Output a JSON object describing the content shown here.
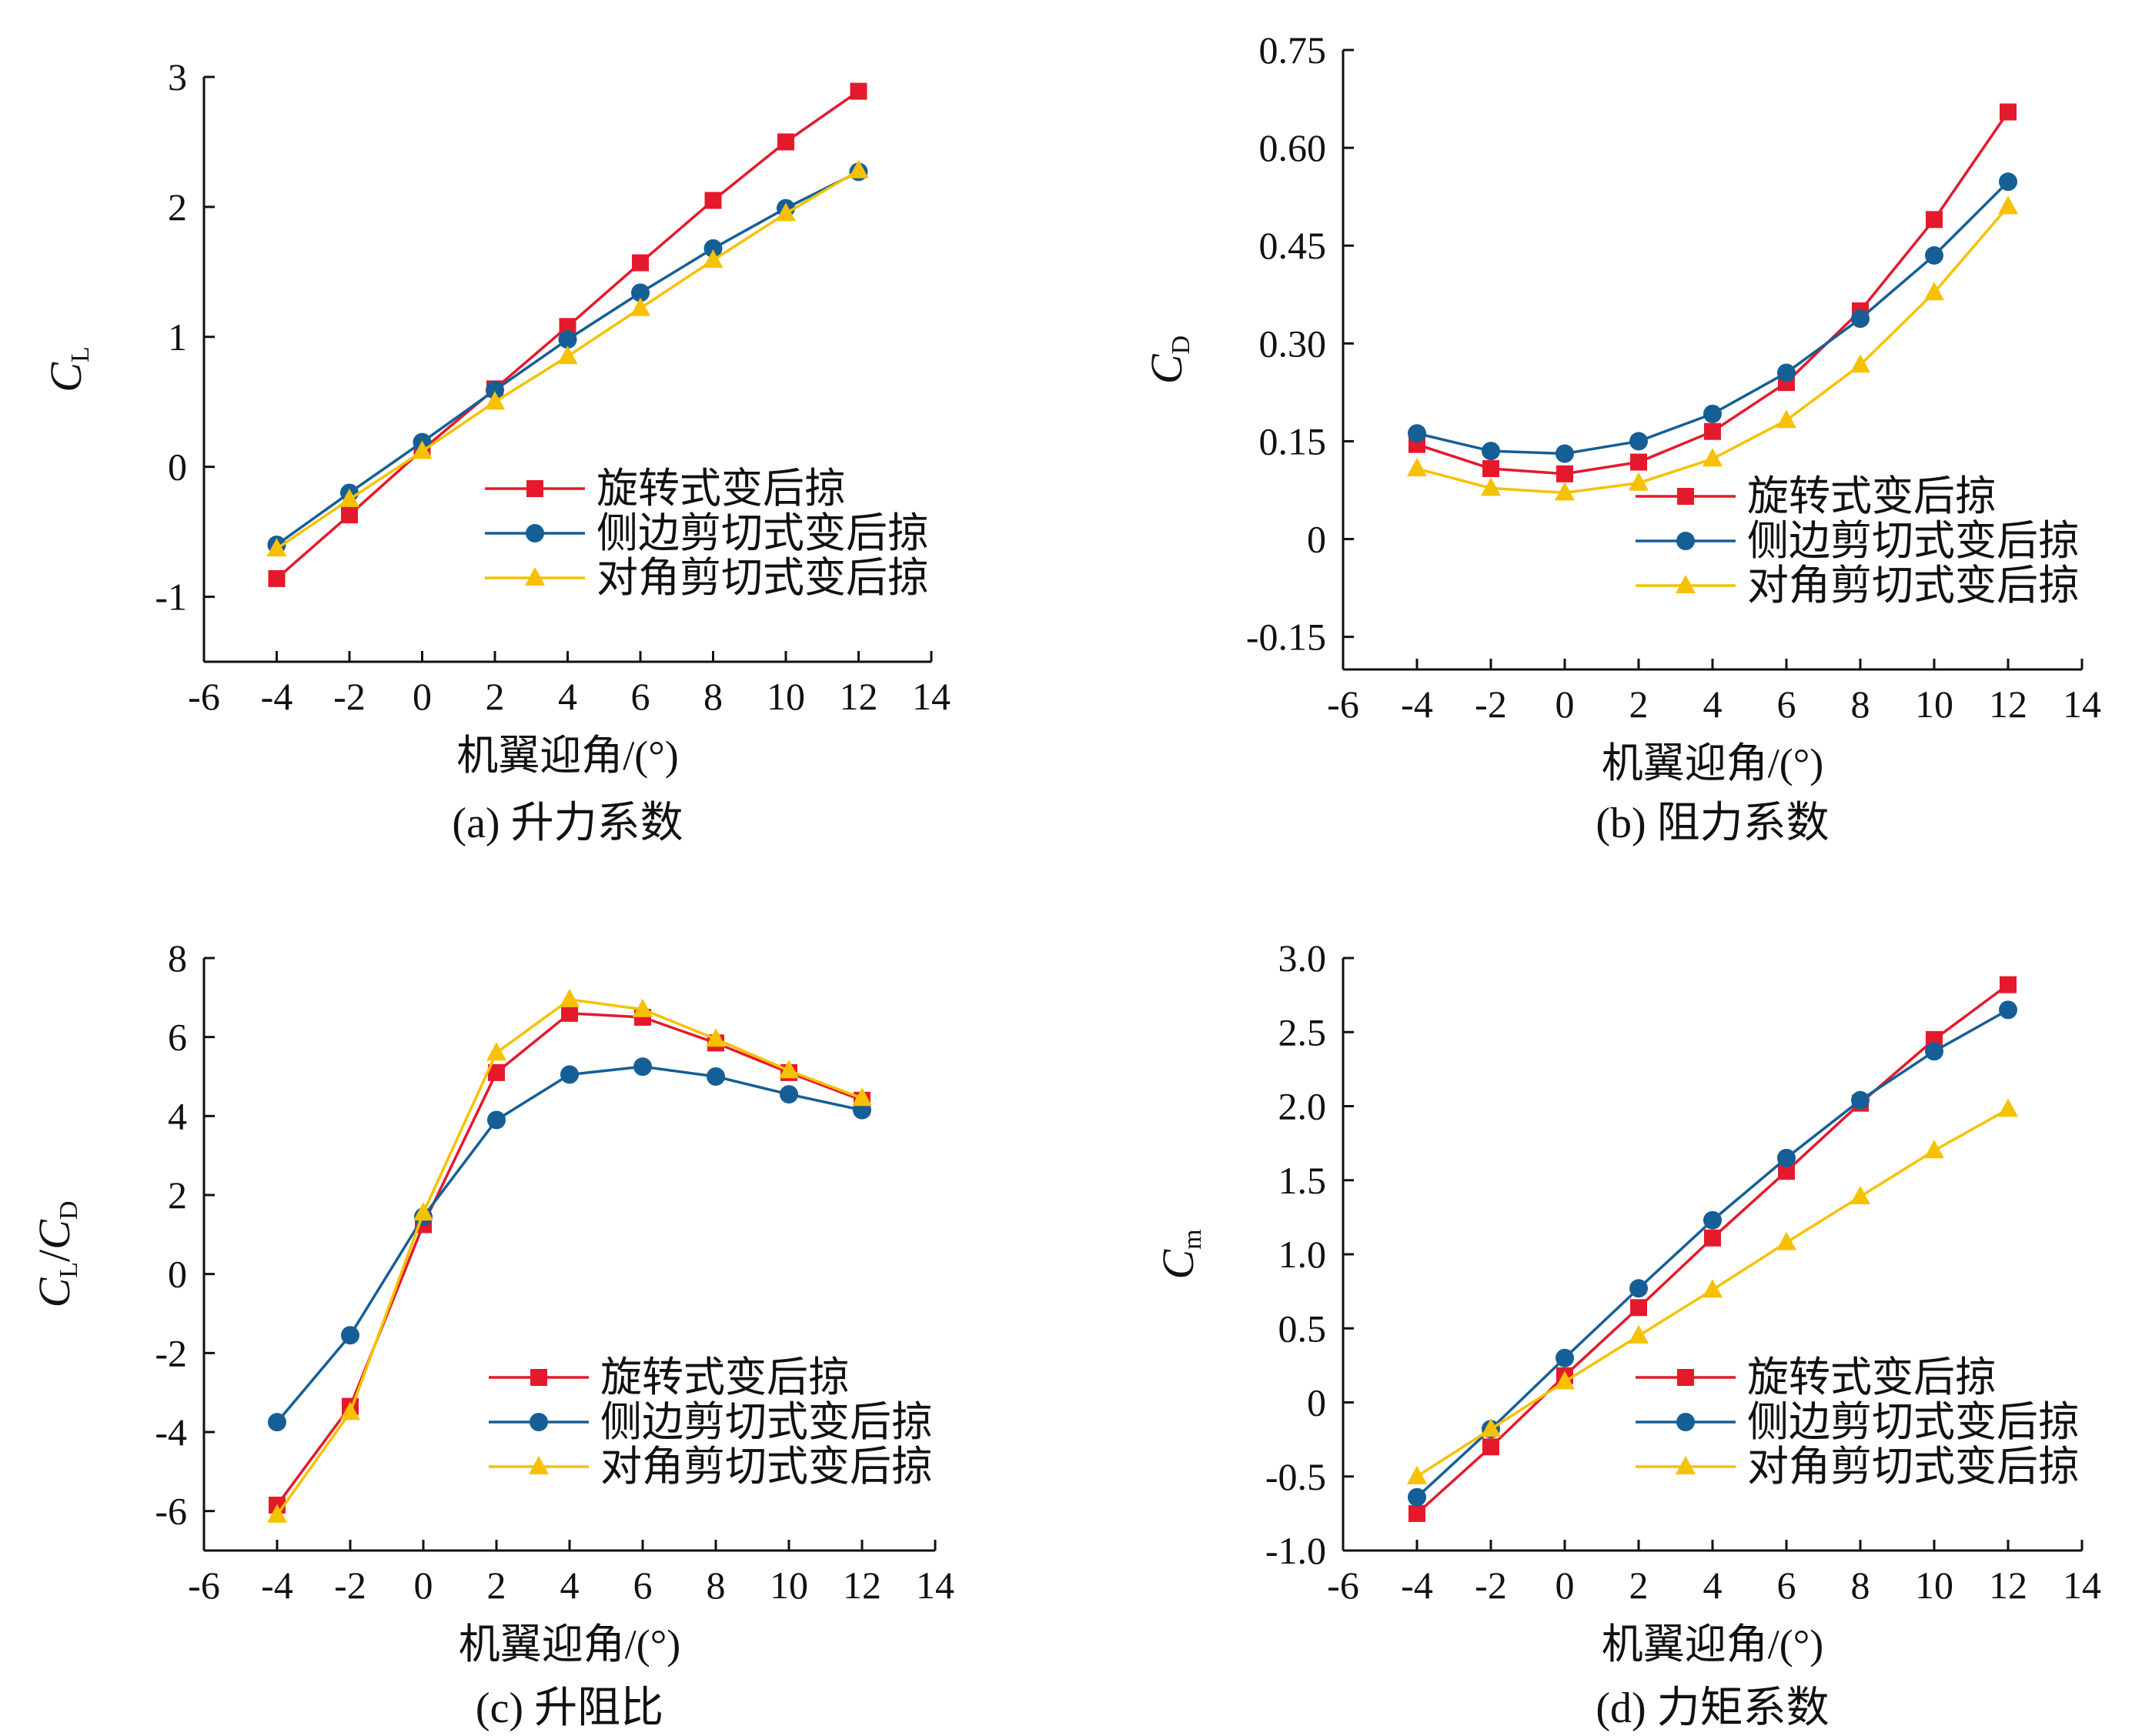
{
  "chart_data": [
    {
      "id": "a",
      "type": "line",
      "caption": "(a) 升力系数",
      "xlabel": "机翼迎角/(°)",
      "ylabel": {
        "main": "C",
        "sub": "L"
      },
      "xlim": [
        -6,
        14
      ],
      "xticks": [
        -6,
        -4,
        -2,
        0,
        2,
        4,
        6,
        8,
        10,
        12,
        14
      ],
      "xtick_labels": [
        "-6",
        "-4",
        "-2",
        "0",
        "2",
        "4",
        "6",
        "8",
        "10",
        "12",
        "14"
      ],
      "ylim": [
        -1.5,
        3
      ],
      "yticks": [
        -1,
        0,
        1,
        2,
        3
      ],
      "ytick_labels": [
        "-1",
        "0",
        "1",
        "2",
        "3"
      ],
      "legend_position": "lower-right",
      "x": [
        -4,
        -2,
        0,
        2,
        4,
        6,
        8,
        10,
        12
      ],
      "series": [
        {
          "name": "旋转式变后掠",
          "color": "#e41a2c",
          "marker": "square",
          "values": [
            -0.86,
            -0.37,
            0.13,
            0.6,
            1.08,
            1.57,
            2.05,
            2.5,
            2.89
          ]
        },
        {
          "name": "侧边剪切式变后掠",
          "color": "#155f96",
          "marker": "circle",
          "values": [
            -0.6,
            -0.2,
            0.19,
            0.59,
            0.98,
            1.34,
            1.68,
            1.99,
            2.27
          ]
        },
        {
          "name": "对角剪切式变后掠",
          "color": "#f6c100",
          "marker": "triangle",
          "values": [
            -0.63,
            -0.25,
            0.12,
            0.5,
            0.85,
            1.22,
            1.59,
            1.95,
            2.28
          ]
        }
      ]
    },
    {
      "id": "b",
      "type": "line",
      "caption": "(b) 阻力系数",
      "xlabel": "机翼迎角/(°)",
      "ylabel": {
        "main": "C",
        "sub": "D"
      },
      "xlim": [
        -6,
        14
      ],
      "xticks": [
        -6,
        -4,
        -2,
        0,
        2,
        4,
        6,
        8,
        10,
        12,
        14
      ],
      "xtick_labels": [
        "-6",
        "-4",
        "-2",
        "0",
        "2",
        "4",
        "6",
        "8",
        "10",
        "12",
        "14"
      ],
      "ylim": [
        -0.2,
        0.75
      ],
      "yticks": [
        -0.15,
        0,
        0.15,
        0.3,
        0.45,
        0.6,
        0.75
      ],
      "ytick_labels": [
        "-0.15",
        "0",
        "0.15",
        "0.30",
        "0.45",
        "0.60",
        "0.75"
      ],
      "legend_position": "lower-right",
      "x": [
        -4,
        -2,
        0,
        2,
        4,
        6,
        8,
        10,
        12
      ],
      "series": [
        {
          "name": "旋转式变后掠",
          "color": "#e41a2c",
          "marker": "square",
          "values": [
            0.145,
            0.108,
            0.1,
            0.118,
            0.165,
            0.24,
            0.35,
            0.49,
            0.655
          ]
        },
        {
          "name": "侧边剪切式变后掠",
          "color": "#155f96",
          "marker": "circle",
          "values": [
            0.162,
            0.135,
            0.131,
            0.15,
            0.192,
            0.255,
            0.338,
            0.435,
            0.548
          ]
        },
        {
          "name": "对角剪切式变后掠",
          "color": "#f6c100",
          "marker": "triangle",
          "values": [
            0.108,
            0.078,
            0.071,
            0.086,
            0.123,
            0.182,
            0.267,
            0.378,
            0.51
          ]
        }
      ]
    },
    {
      "id": "c",
      "type": "line",
      "caption": "(c) 升阻比",
      "xlabel": "机翼迎角/(°)",
      "ylabel": {
        "main": "C",
        "sub": "L",
        "sep": "/",
        "main2": "C",
        "sub2": "D"
      },
      "xlim": [
        -6,
        14
      ],
      "xticks": [
        -6,
        -4,
        -2,
        0,
        2,
        4,
        6,
        8,
        10,
        12,
        14
      ],
      "xtick_labels": [
        "-6",
        "-4",
        "-2",
        "0",
        "2",
        "4",
        "6",
        "8",
        "10",
        "12",
        "14"
      ],
      "ylim": [
        -7,
        8
      ],
      "yticks": [
        -6,
        -4,
        -2,
        0,
        2,
        4,
        6,
        8
      ],
      "ytick_labels": [
        "-6",
        "-4",
        "-2",
        "0",
        "2",
        "4",
        "6",
        "8"
      ],
      "legend_position": "lower-right",
      "x": [
        -4,
        -2,
        0,
        2,
        4,
        6,
        8,
        10,
        12
      ],
      "series": [
        {
          "name": "旋转式变后掠",
          "color": "#e41a2c",
          "marker": "square",
          "values": [
            -5.85,
            -3.35,
            1.25,
            5.1,
            6.6,
            6.5,
            5.85,
            5.1,
            4.4
          ]
        },
        {
          "name": "侧边剪切式变后掠",
          "color": "#155f96",
          "marker": "circle",
          "values": [
            -3.75,
            -1.55,
            1.45,
            3.9,
            5.05,
            5.25,
            5.0,
            4.55,
            4.15
          ]
        },
        {
          "name": "对角剪切式变后掠",
          "color": "#f6c100",
          "marker": "triangle",
          "values": [
            -6.1,
            -3.5,
            1.55,
            5.6,
            6.95,
            6.7,
            5.95,
            5.15,
            4.45
          ]
        }
      ]
    },
    {
      "id": "d",
      "type": "line",
      "caption": "(d) 力矩系数",
      "xlabel": "机翼迎角/(°)",
      "ylabel": {
        "main": "C",
        "sub": "m"
      },
      "xlim": [
        -6,
        14
      ],
      "xticks": [
        -6,
        -4,
        -2,
        0,
        2,
        4,
        6,
        8,
        10,
        12,
        14
      ],
      "xtick_labels": [
        "-6",
        "-4",
        "-2",
        "0",
        "2",
        "4",
        "6",
        "8",
        "10",
        "12",
        "14"
      ],
      "ylim": [
        -1.0,
        3.0
      ],
      "yticks": [
        -1.0,
        -0.5,
        0,
        0.5,
        1.0,
        1.5,
        2.0,
        2.5,
        3.0
      ],
      "ytick_labels": [
        "-1.0",
        "-0.5",
        "0",
        "0.5",
        "1.0",
        "1.5",
        "2.0",
        "2.5",
        "3.0"
      ],
      "legend_position": "lower-right",
      "x": [
        -4,
        -2,
        0,
        2,
        4,
        6,
        8,
        10,
        12
      ],
      "series": [
        {
          "name": "旋转式变后掠",
          "color": "#e41a2c",
          "marker": "square",
          "values": [
            -0.75,
            -0.3,
            0.18,
            0.64,
            1.11,
            1.56,
            2.02,
            2.45,
            2.82
          ]
        },
        {
          "name": "侧边剪切式变后掠",
          "color": "#155f96",
          "marker": "circle",
          "values": [
            -0.64,
            -0.18,
            0.3,
            0.77,
            1.23,
            1.65,
            2.04,
            2.37,
            2.65
          ]
        },
        {
          "name": "对角剪切式变后掠",
          "color": "#f6c100",
          "marker": "triangle",
          "values": [
            -0.5,
            -0.18,
            0.14,
            0.45,
            0.76,
            1.08,
            1.39,
            1.7,
            1.98
          ]
        }
      ]
    }
  ]
}
